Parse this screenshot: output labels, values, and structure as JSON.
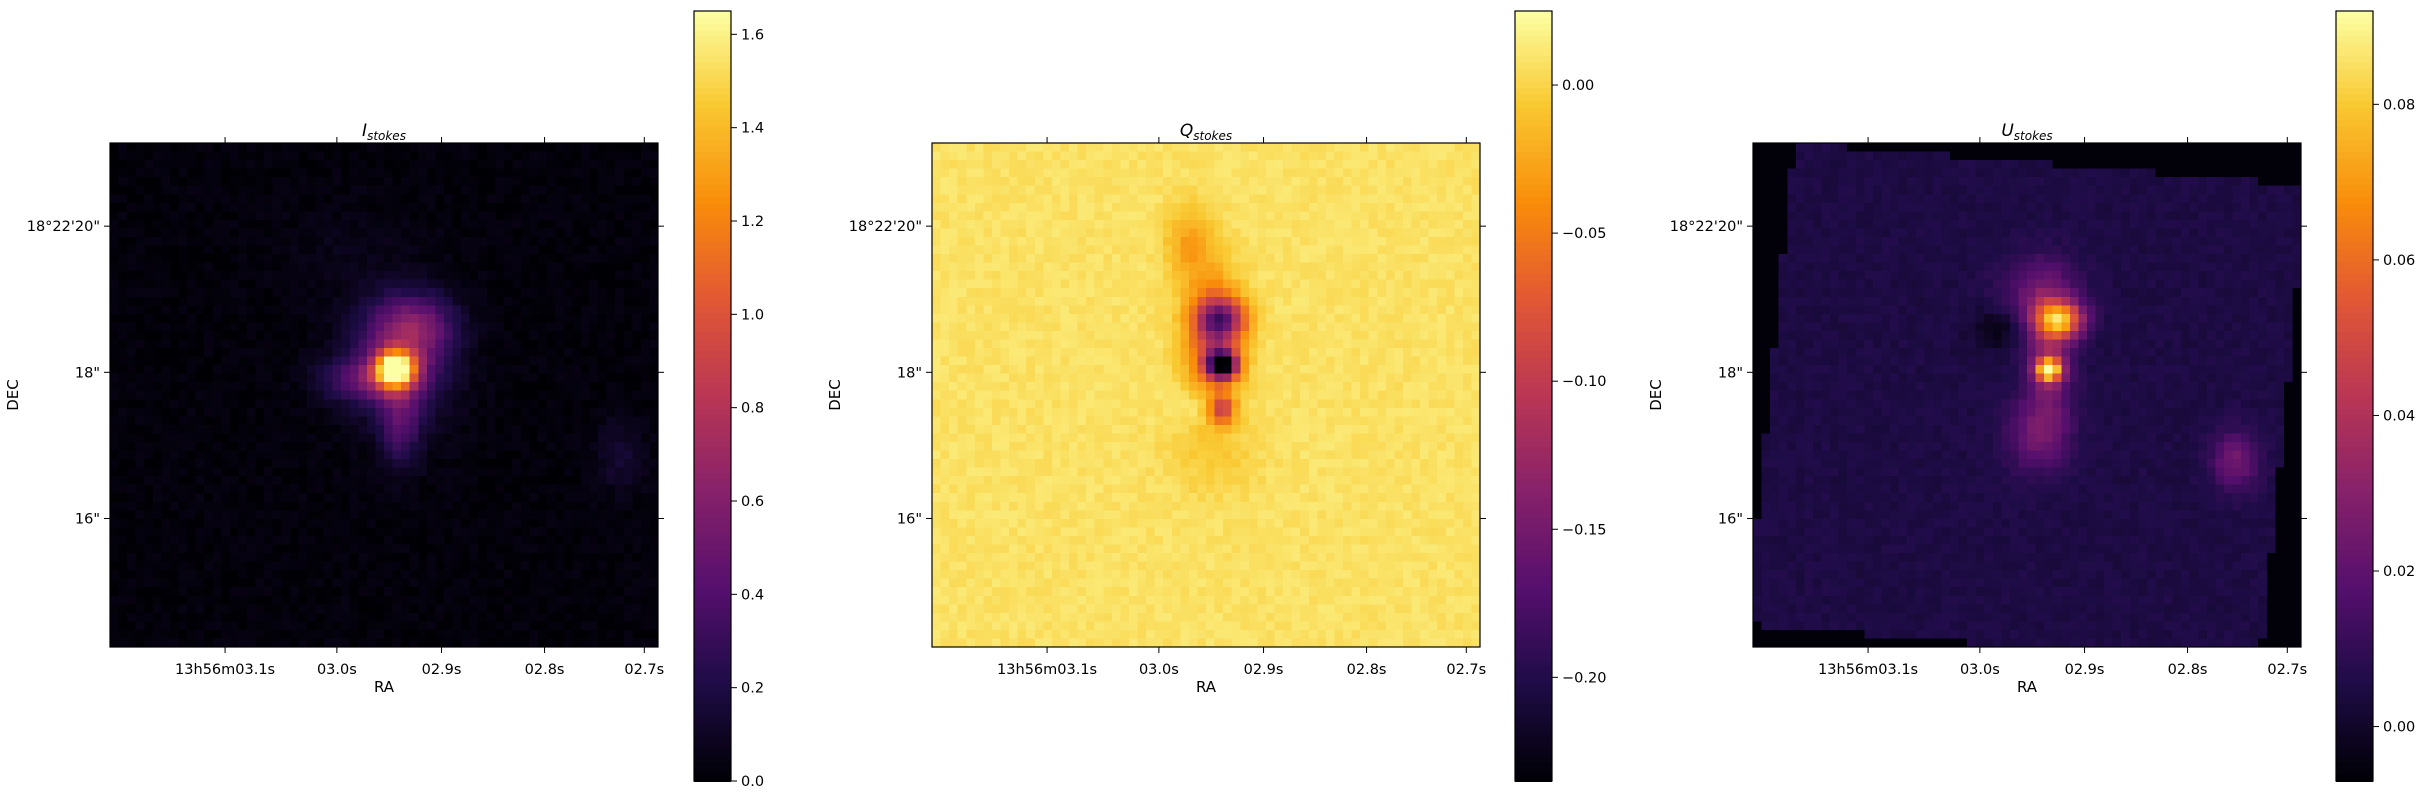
{
  "chart_data": [
    {
      "type": "heatmap",
      "title": "I",
      "title_sub": "stokes",
      "xlabel": "RA",
      "ylabel": "DEC",
      "x_tick_labels": [
        "13h56m03.1s",
        "03.0s",
        "02.9s",
        "02.8s",
        "02.7s"
      ],
      "y_tick_labels": [
        "18°22'20\"",
        "18\"",
        "16\""
      ],
      "colormap": "inferno",
      "colorbar": {
        "range": [
          0.0,
          1.65
        ],
        "ticks": [
          0.0,
          0.2,
          0.4,
          0.6,
          0.8,
          1.0,
          1.2,
          1.4,
          1.6
        ],
        "tick_labels": [
          "0.0",
          "0.2",
          "0.4",
          "0.6",
          "0.8",
          "1.0",
          "1.2",
          "1.4",
          "1.6"
        ]
      },
      "background_value": 0.02,
      "features": [
        {
          "x": 0.52,
          "y": 0.45,
          "sx": 0.025,
          "sy": 0.025,
          "amp": 1.6
        },
        {
          "x": 0.53,
          "y": 0.43,
          "sx": 0.06,
          "sy": 0.08,
          "amp": 0.5
        },
        {
          "x": 0.56,
          "y": 0.36,
          "sx": 0.05,
          "sy": 0.04,
          "amp": 0.35
        },
        {
          "x": 0.45,
          "y": 0.47,
          "sx": 0.05,
          "sy": 0.03,
          "amp": 0.3
        },
        {
          "x": 0.53,
          "y": 0.56,
          "sx": 0.025,
          "sy": 0.06,
          "amp": 0.3
        },
        {
          "x": 0.42,
          "y": 0.22,
          "sx": 0.08,
          "sy": 0.06,
          "amp": 0.04
        },
        {
          "x": 0.93,
          "y": 0.62,
          "sx": 0.03,
          "sy": 0.05,
          "amp": 0.12
        }
      ]
    },
    {
      "type": "heatmap",
      "title": "Q",
      "title_sub": "stokes",
      "xlabel": "RA",
      "ylabel": "DEC",
      "x_tick_labels": [
        "13h56m03.1s",
        "03.0s",
        "02.9s",
        "02.8s",
        "02.7s"
      ],
      "y_tick_labels": [
        "18°22'20\"",
        "18\"",
        "16\""
      ],
      "colormap": "inferno",
      "colorbar": {
        "range": [
          -0.235,
          0.025
        ],
        "ticks": [
          0.0,
          -0.05,
          -0.1,
          -0.15,
          -0.2
        ],
        "tick_labels": [
          "0.00",
          "−0.05",
          "−0.10",
          "−0.15",
          "−0.20"
        ]
      },
      "background_value": 0.008,
      "features": [
        {
          "x": 0.53,
          "y": 0.44,
          "sx": 0.02,
          "sy": 0.02,
          "amp": -0.23
        },
        {
          "x": 0.53,
          "y": 0.35,
          "sx": 0.03,
          "sy": 0.03,
          "amp": -0.13
        },
        {
          "x": 0.51,
          "y": 0.39,
          "sx": 0.035,
          "sy": 0.09,
          "amp": -0.08
        },
        {
          "x": 0.53,
          "y": 0.53,
          "sx": 0.015,
          "sy": 0.02,
          "amp": -0.09
        },
        {
          "x": 0.47,
          "y": 0.2,
          "sx": 0.03,
          "sy": 0.05,
          "amp": -0.035
        },
        {
          "x": 0.51,
          "y": 0.62,
          "sx": 0.06,
          "sy": 0.06,
          "amp": -0.012
        },
        {
          "x": 0.48,
          "y": 0.52,
          "sx": 0.03,
          "sy": 0.03,
          "amp": 0.018
        }
      ]
    },
    {
      "type": "heatmap",
      "title": "U",
      "title_sub": "stokes",
      "xlabel": "RA",
      "ylabel": "DEC",
      "x_tick_labels": [
        "13h56m03.1s",
        "03.0s",
        "02.9s",
        "02.8s",
        "02.7s"
      ],
      "y_tick_labels": [
        "18°22'20\"",
        "18\"",
        "16\""
      ],
      "colormap": "inferno",
      "colorbar": {
        "range": [
          -0.007,
          0.092
        ],
        "ticks": [
          0.0,
          0.02,
          0.04,
          0.06,
          0.08
        ],
        "tick_labels": [
          "0.00",
          "0.02",
          "0.04",
          "0.06",
          "0.08"
        ]
      },
      "background_value": 0.005,
      "outside_value": -0.006,
      "features": [
        {
          "x": 0.54,
          "y": 0.45,
          "sx": 0.015,
          "sy": 0.015,
          "amp": 0.085
        },
        {
          "x": 0.56,
          "y": 0.35,
          "sx": 0.03,
          "sy": 0.025,
          "amp": 0.06
        },
        {
          "x": 0.54,
          "y": 0.42,
          "sx": 0.03,
          "sy": 0.09,
          "amp": 0.025
        },
        {
          "x": 0.52,
          "y": 0.3,
          "sx": 0.05,
          "sy": 0.05,
          "amp": 0.015
        },
        {
          "x": 0.52,
          "y": 0.58,
          "sx": 0.04,
          "sy": 0.05,
          "amp": 0.018
        },
        {
          "x": 0.88,
          "y": 0.63,
          "sx": 0.03,
          "sy": 0.04,
          "amp": 0.02
        },
        {
          "x": 0.45,
          "y": 0.37,
          "sx": 0.035,
          "sy": 0.03,
          "amp": -0.01
        }
      ]
    }
  ]
}
